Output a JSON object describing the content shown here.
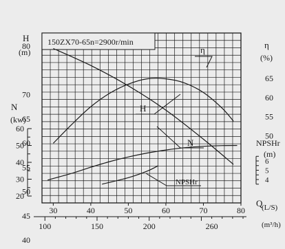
{
  "chart_data": {
    "type": "line",
    "title": "150ZX70-65n=2900r/min",
    "x_axis": {
      "label": "Q",
      "unit_top": "(L/S)",
      "unit_bottom": "(m³/h)",
      "ticks_top": [
        "30",
        "40",
        "50",
        "60",
        "70",
        "80"
      ],
      "range_top": [
        27,
        80
      ],
      "ticks_bottom": [
        "100",
        "150",
        "200",
        "260"
      ],
      "ticks_bottom_values": [
        100,
        150,
        200,
        260
      ]
    },
    "left_axis_H": {
      "label": "H",
      "unit": "(m)",
      "ticks": [
        "80",
        "70",
        "65",
        "60",
        "55",
        "50",
        "45",
        "40"
      ],
      "tick_values": [
        80,
        70,
        65,
        60,
        55,
        50,
        45,
        40
      ],
      "range": [
        37.5,
        80
      ]
    },
    "left_axis_N": {
      "label": "N",
      "unit": "(kw)",
      "ticks": [
        "60",
        "50",
        "40",
        "30",
        "20"
      ],
      "tick_values": [
        60,
        50,
        40,
        30,
        20
      ],
      "range": [
        20,
        60
      ]
    },
    "right_axis_eta": {
      "label": "η",
      "unit": "(%)",
      "ticks": [
        "65",
        "60",
        "55",
        "50"
      ],
      "tick_values": [
        65,
        60,
        55,
        50
      ]
    },
    "right_axis_npshr": {
      "label": "NPSHr",
      "unit": "(m)",
      "ticks": [
        "6",
        "5",
        "4"
      ],
      "tick_values": [
        6,
        5,
        4
      ]
    },
    "series": [
      {
        "name": "H",
        "axis": "H",
        "x": [
          30,
          40,
          50,
          60,
          70,
          78
        ],
        "y": [
          79.5,
          76.0,
          71.8,
          66.8,
          60.8,
          55.6
        ]
      },
      {
        "name": "η",
        "axis": "eta",
        "x": [
          30,
          35,
          40,
          45,
          50,
          55,
          60,
          65,
          70,
          75,
          78
        ],
        "y": [
          48,
          53,
          57.6,
          61.1,
          63.5,
          64.9,
          64.9,
          63.8,
          61.3,
          57.2,
          53.8
        ]
      },
      {
        "name": "N",
        "axis": "N",
        "x": [
          28.5,
          35,
          40,
          45,
          50,
          55,
          60,
          65,
          70,
          75,
          79
        ],
        "y": [
          29.5,
          33.5,
          37.1,
          40.4,
          43.2,
          45.5,
          47.3,
          48.7,
          49.5,
          49.9,
          50
        ]
      },
      {
        "name": "NPSHr",
        "axis": "NPSHr",
        "x": [
          43,
          50,
          55,
          58
        ],
        "y": [
          3.5,
          4.2,
          4.9,
          5.5
        ]
      }
    ],
    "grid": true
  }
}
